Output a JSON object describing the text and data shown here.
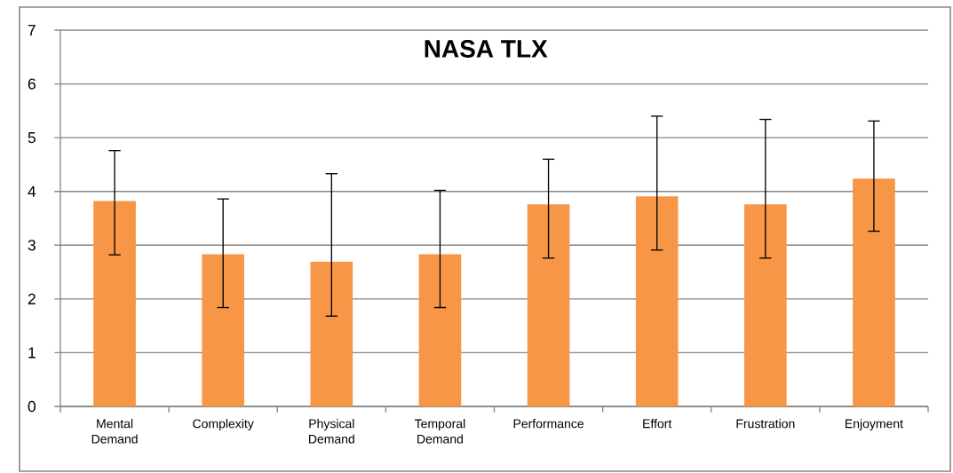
{
  "chart_data": {
    "type": "bar",
    "title": "NASA TLX",
    "categories": [
      "Mental Demand",
      "Complexity",
      "Physical Demand",
      "Temporal Demand",
      "Performance",
      "Effort",
      "Frustration",
      "Enjoyment"
    ],
    "values": [
      3.82,
      2.83,
      2.69,
      2.83,
      3.76,
      3.91,
      3.76,
      4.24
    ],
    "errors": [
      [
        2.82,
        4.76
      ],
      [
        1.84,
        3.86
      ],
      [
        1.68,
        4.33
      ],
      [
        1.84,
        4.02
      ],
      [
        2.76,
        4.6
      ],
      [
        2.91,
        5.4
      ],
      [
        2.76,
        5.34
      ],
      [
        3.26,
        5.31
      ]
    ],
    "color": "#f79646",
    "ylim": [
      0,
      7
    ],
    "yticks": [
      0,
      1,
      2,
      3,
      4,
      5,
      6,
      7
    ],
    "grid": "y"
  }
}
